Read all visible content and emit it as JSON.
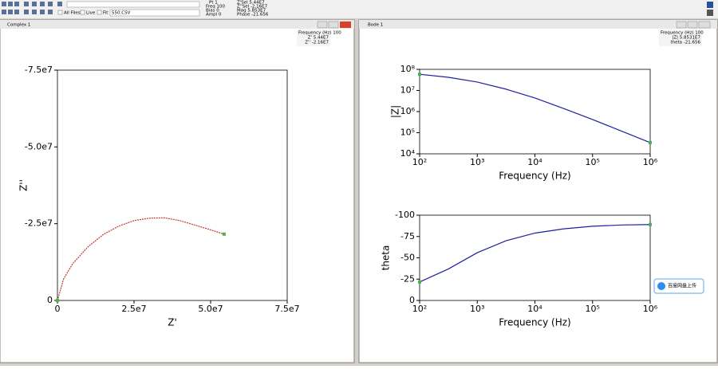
{
  "toolbar": {
    "all_files": "All Files",
    "live": "Live",
    "fit": "Fit",
    "file": "550.CSV",
    "status_left": [
      "Pt 1",
      "Freq 100",
      "Bias 0",
      "Ampl 0"
    ],
    "status_right": [
      "Z'Sel 5.44E7",
      "Z''Sel -2.16E7",
      "Mag 5.853E7",
      "Phase -21.656"
    ]
  },
  "windows": [
    {
      "title": "Complex 1",
      "info": [
        "Frequency (Hz) 100",
        "Z' 5.44E7",
        "Z'' -2.16E7"
      ]
    },
    {
      "title": "Bode 1",
      "info": [
        "Frequency (Hz) 100",
        "|Z| 5.8531E7",
        "theta -21.656"
      ]
    }
  ],
  "upload_button": "百度网盘上传",
  "chart_data": [
    {
      "type": "line",
      "x_label": "Z'",
      "y_label": "Z''",
      "xlim": [
        0,
        75000000
      ],
      "ylim": [
        0,
        -75000000
      ],
      "xticks": [
        0,
        {
          "value": 25000000,
          "label": "2.5e7"
        },
        {
          "value": 50000000,
          "label": "5.0e7"
        },
        {
          "value": 75000000,
          "label": "7.5e7"
        }
      ],
      "yticks": [
        0,
        {
          "value": -25000000,
          "label": "-2.5e7"
        },
        {
          "value": -50000000,
          "label": "-5.0e7"
        },
        {
          "value": -75000000,
          "label": "-7.5e7"
        }
      ],
      "series": [
        {
          "color": "#c0392b",
          "marker_color": "#4caf50",
          "x": [
            0,
            2000000,
            5000000,
            10000000,
            15000000,
            20000000,
            25000000,
            30000000,
            35000000,
            40000000,
            45000000,
            50000000,
            54400000
          ],
          "values": [
            0,
            -7000000,
            -12000000,
            -17500000,
            -21500000,
            -24200000,
            -26000000,
            -26800000,
            -26900000,
            -26000000,
            -24500000,
            -23000000,
            -21600000
          ]
        }
      ]
    },
    {
      "type": "line",
      "log_x": true,
      "log_y": true,
      "x_label": "Frequency (Hz)",
      "y_label": "|Z|",
      "xlim": [
        100,
        1000000
      ],
      "ylim": [
        10000,
        100000000
      ],
      "xticks": [
        {
          "value": 100,
          "label": "10²"
        },
        {
          "value": 1000,
          "label": "10³"
        },
        {
          "value": 10000,
          "label": "10⁴"
        },
        {
          "value": 100000,
          "label": "10⁵"
        },
        {
          "value": 1000000,
          "label": "10⁶"
        }
      ],
      "yticks": [
        {
          "value": 10000,
          "label": "10⁴"
        },
        {
          "value": 100000,
          "label": "10⁵"
        },
        {
          "value": 1000000,
          "label": "10⁶"
        },
        {
          "value": 10000000,
          "label": "10⁷"
        },
        {
          "value": 100000000,
          "label": "10⁸"
        }
      ],
      "series": [
        {
          "color": "#1f1fa0",
          "marker_color": "#4caf50",
          "x": [
            100,
            316,
            1000,
            3162,
            10000,
            31623,
            100000,
            316228,
            1000000
          ],
          "values": [
            58500000,
            42000000,
            25000000,
            11500000,
            4400000,
            1400000,
            420000,
            120000,
            34000
          ]
        }
      ]
    },
    {
      "type": "line",
      "log_x": true,
      "x_label": "Frequency (Hz)",
      "y_label": "theta",
      "xlim": [
        100,
        1000000
      ],
      "ylim": [
        0,
        -100
      ],
      "xticks": [
        {
          "value": 100,
          "label": "10²"
        },
        {
          "value": 1000,
          "label": "10³"
        },
        {
          "value": 10000,
          "label": "10⁴"
        },
        {
          "value": 100000,
          "label": "10⁵"
        },
        {
          "value": 1000000,
          "label": "10⁶"
        }
      ],
      "yticks": [
        0,
        -25,
        -50,
        -75,
        -100
      ],
      "series": [
        {
          "color": "#1f1fa0",
          "marker_color": "#4caf50",
          "x": [
            100,
            316,
            1000,
            3162,
            10000,
            31623,
            100000,
            316228,
            1000000
          ],
          "values": [
            -21.656,
            -37,
            -56,
            -70,
            -79,
            -84,
            -87,
            -88.5,
            -89
          ]
        }
      ]
    }
  ]
}
